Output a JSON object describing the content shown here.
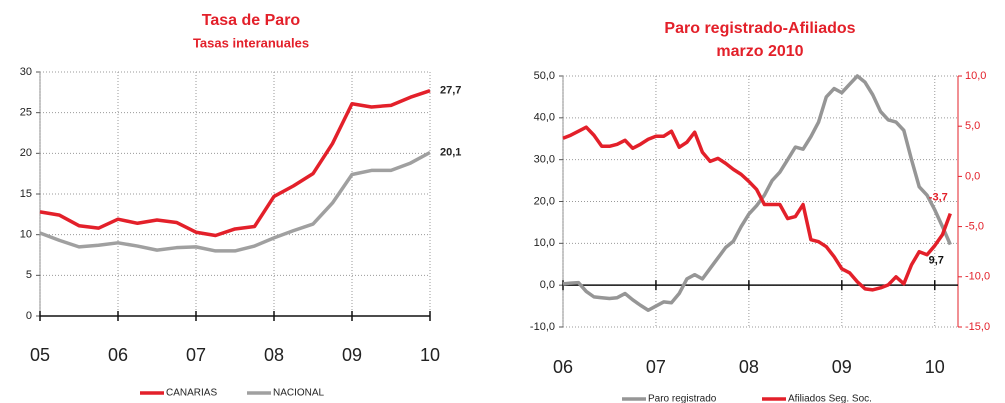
{
  "chart_data": [
    {
      "type": "line",
      "title": "Tasa de Paro",
      "subtitle": "Tasas interanuales",
      "x": [
        2005,
        2005.25,
        2005.5,
        2005.75,
        2006,
        2006.25,
        2006.5,
        2006.75,
        2007,
        2007.25,
        2007.5,
        2007.75,
        2008,
        2008.25,
        2008.5,
        2008.75,
        2009,
        2009.25,
        2009.5,
        2009.75,
        2010
      ],
      "series": [
        {
          "name": "CANARIAS",
          "color": "#e3202a",
          "values": [
            12.8,
            12.4,
            11.1,
            10.8,
            11.9,
            11.4,
            11.8,
            11.5,
            10.3,
            9.9,
            10.7,
            11.0,
            14.7,
            16.0,
            17.5,
            21.2,
            26.1,
            25.7,
            25.9,
            26.9,
            27.7
          ],
          "value_labels": [
            null,
            null,
            null,
            null,
            null,
            null,
            null,
            null,
            null,
            null,
            null,
            null,
            null,
            null,
            null,
            null,
            null,
            null,
            null,
            null,
            "27,7"
          ]
        },
        {
          "name": "NACIONAL",
          "color": "#a0a0a0",
          "values": [
            10.2,
            9.3,
            8.5,
            8.7,
            9.0,
            8.6,
            8.1,
            8.4,
            8.5,
            8.0,
            8.0,
            8.6,
            9.6,
            10.5,
            11.3,
            13.9,
            17.4,
            17.9,
            17.9,
            18.8,
            20.1
          ],
          "value_labels": [
            null,
            null,
            null,
            null,
            null,
            null,
            null,
            null,
            null,
            null,
            null,
            null,
            null,
            null,
            null,
            null,
            null,
            null,
            null,
            null,
            "20,1"
          ]
        }
      ],
      "xlim": [
        2005,
        2010
      ],
      "xticks": [
        {
          "value": 2005,
          "label": "05"
        },
        {
          "value": 2006,
          "label": "06"
        },
        {
          "value": 2007,
          "label": "07"
        },
        {
          "value": 2008,
          "label": "08"
        },
        {
          "value": 2009,
          "label": "09"
        },
        {
          "value": 2010,
          "label": "10"
        }
      ],
      "ylim": [
        0,
        30
      ],
      "yticks": [
        0,
        5,
        10,
        15,
        20,
        25,
        30
      ],
      "grid": true,
      "legend": "bottom"
    },
    {
      "type": "line",
      "title": "Paro registrado-Afiliados",
      "subtitle": "marzo 2010",
      "x": [
        2006,
        2006.083,
        2006.167,
        2006.25,
        2006.333,
        2006.417,
        2006.5,
        2006.583,
        2006.667,
        2006.75,
        2006.833,
        2006.917,
        2007,
        2007.083,
        2007.167,
        2007.25,
        2007.333,
        2007.417,
        2007.5,
        2007.583,
        2007.667,
        2007.75,
        2007.833,
        2007.917,
        2008,
        2008.083,
        2008.167,
        2008.25,
        2008.333,
        2008.417,
        2008.5,
        2008.583,
        2008.667,
        2008.75,
        2008.833,
        2008.917,
        2009,
        2009.083,
        2009.167,
        2009.25,
        2009.333,
        2009.417,
        2009.5,
        2009.583,
        2009.667,
        2009.75,
        2009.833,
        2009.917,
        2010,
        2010.083,
        2010.167
      ],
      "series": [
        {
          "name": "Paro registrado",
          "color": "#969696",
          "values": [
            0.3,
            0.5,
            0.6,
            -1.5,
            -2.8,
            -3.0,
            -3.2,
            -3.0,
            -2.0,
            -3.5,
            -4.8,
            -6.0,
            -5.0,
            -4.0,
            -4.2,
            -2.0,
            1.5,
            2.5,
            1.5,
            4.0,
            6.5,
            9.0,
            10.5,
            14.0,
            17.0,
            19.0,
            21.5,
            25.0,
            27.0,
            30.0,
            33.0,
            32.5,
            35.5,
            39.0,
            45.0,
            47.0,
            46.0,
            48.0,
            50.0,
            48.5,
            45.5,
            41.5,
            39.5,
            39.0,
            37.0,
            30.0,
            23.5,
            21.5,
            18.0,
            14.0,
            9.7
          ],
          "value_labels": [
            null,
            null,
            null,
            null,
            null,
            null,
            null,
            null,
            null,
            null,
            null,
            null,
            null,
            null,
            null,
            null,
            null,
            null,
            null,
            null,
            null,
            null,
            null,
            null,
            null,
            null,
            null,
            null,
            null,
            null,
            null,
            null,
            null,
            null,
            null,
            null,
            null,
            null,
            null,
            null,
            null,
            null,
            null,
            null,
            null,
            null,
            null,
            null,
            null,
            null,
            "9,7"
          ]
        },
        {
          "name": "Afiliados Seg. Soc.",
          "color": "#e3202a",
          "axis": "y2",
          "values": [
            3.8,
            4.1,
            4.5,
            4.9,
            4.1,
            3.0,
            3.0,
            3.2,
            3.6,
            2.8,
            3.2,
            3.7,
            4.0,
            4.0,
            4.5,
            2.9,
            3.4,
            4.4,
            2.4,
            1.5,
            1.8,
            1.3,
            0.7,
            0.2,
            -0.5,
            -1.3,
            -2.8,
            -2.8,
            -2.8,
            -4.2,
            -4.0,
            -2.8,
            -6.3,
            -6.5,
            -7.0,
            -8.0,
            -9.2,
            -9.6,
            -10.5,
            -11.2,
            -11.3,
            -11.1,
            -10.8,
            -10.0,
            -10.7,
            -8.8,
            -7.5,
            -7.8,
            -6.9,
            -5.8,
            -3.7
          ],
          "value_labels": [
            null,
            null,
            null,
            null,
            null,
            null,
            null,
            null,
            null,
            null,
            null,
            null,
            null,
            null,
            null,
            null,
            null,
            null,
            null,
            null,
            null,
            null,
            null,
            null,
            null,
            null,
            null,
            null,
            null,
            null,
            null,
            null,
            null,
            null,
            null,
            null,
            null,
            null,
            null,
            null,
            null,
            null,
            null,
            null,
            null,
            null,
            null,
            null,
            null,
            null,
            "-3,7"
          ]
        }
      ],
      "xlim": [
        2006,
        2010.25
      ],
      "xticks": [
        {
          "value": 2006,
          "label": "06"
        },
        {
          "value": 2007,
          "label": "07"
        },
        {
          "value": 2008,
          "label": "08"
        },
        {
          "value": 2009,
          "label": "09"
        },
        {
          "value": 2010,
          "label": "10"
        }
      ],
      "ylim": [
        -10,
        50
      ],
      "yticks": [
        {
          "value": -10,
          "label": "-10,0"
        },
        {
          "value": 0,
          "label": "0,0"
        },
        {
          "value": 10,
          "label": "10,0"
        },
        {
          "value": 20,
          "label": "20,0"
        },
        {
          "value": 30,
          "label": "30,0"
        },
        {
          "value": 40,
          "label": "40,0"
        },
        {
          "value": 50,
          "label": "50,0"
        }
      ],
      "y2lim": [
        -15,
        10
      ],
      "y2ticks": [
        {
          "value": -15,
          "label": "-15,0"
        },
        {
          "value": -10,
          "label": "-10,0"
        },
        {
          "value": -5,
          "label": "-5,0"
        },
        {
          "value": 0,
          "label": "0,0"
        },
        {
          "value": 5,
          "label": "5,0"
        },
        {
          "value": 10,
          "label": "10,0"
        }
      ],
      "grid": true,
      "legend": "bottom"
    }
  ]
}
